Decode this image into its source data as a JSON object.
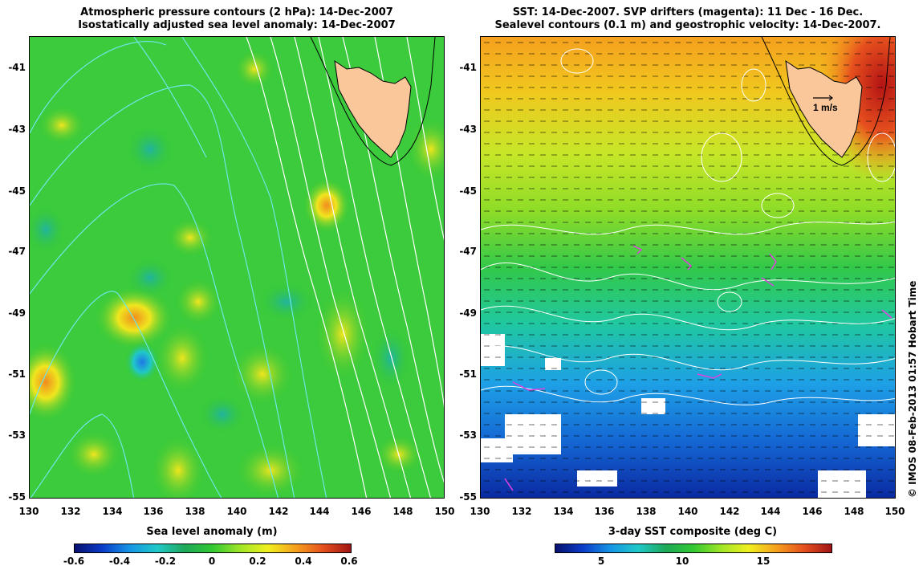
{
  "left_panel": {
    "title_line1": "Atmospheric pressure contours (2 hPa): 14-Dec-2007",
    "title_line2": "Isostatically adjusted sea level anomaly: 14-Dec-2007",
    "colorbar_label": "Sea level anomaly (m)",
    "colorbar_ticks": [
      "-0.6",
      "-0.4",
      "-0.2",
      "0",
      "0.2",
      "0.4",
      "0.6"
    ]
  },
  "right_panel": {
    "title_line1": "SST: 14-Dec-2007. SVP drifters (magenta): 11 Dec - 16 Dec.",
    "title_line2": "Sealevel contours (0.1 m) and geostrophic velocity: 14-Dec-2007.",
    "colorbar_label": "3-day SST composite (deg C)",
    "colorbar_ticks": [
      "5",
      "10",
      "15"
    ],
    "scale_label": "1 m/s"
  },
  "axes": {
    "lat_ticks": [
      "-41",
      "-43",
      "-45",
      "-47",
      "-49",
      "-51",
      "-53",
      "-55"
    ],
    "lon_ticks": [
      "130",
      "132",
      "134",
      "136",
      "138",
      "140",
      "142",
      "144",
      "146",
      "148",
      "150"
    ]
  },
  "credit": "© IMOS 08-Feb-2013 01:57 Hobart Time",
  "colors": {
    "land": "#f9c79a",
    "left_background": "#32c832",
    "pressure_contour": "#6ee6e6",
    "drifters": "#e040e0"
  }
}
